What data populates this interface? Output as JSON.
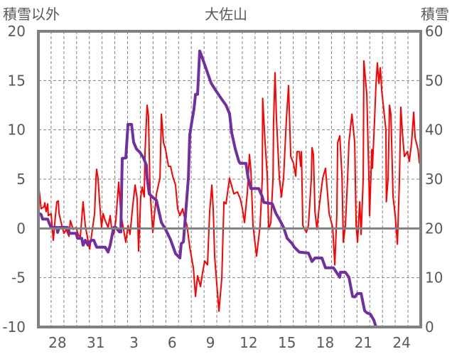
{
  "chart_data": {
    "type": "line",
    "title": "大佐山",
    "ylabel_left": "積雪以外",
    "ylabel_right": "積雪",
    "xlabel": "",
    "ylim_left": [
      -10,
      20
    ],
    "ylim_right": [
      0,
      60
    ],
    "left_ticks": [
      "20",
      "15",
      "10",
      "5",
      "0",
      "-5",
      "-10"
    ],
    "right_ticks": [
      "60",
      "50",
      "40",
      "30",
      "20",
      "10",
      "0"
    ],
    "x_days": 30,
    "x_tick_labels": [
      {
        "day_index": 1,
        "label": "28"
      },
      {
        "day_index": 4,
        "label": "31"
      },
      {
        "day_index": 7,
        "label": "3"
      },
      {
        "day_index": 10,
        "label": "6"
      },
      {
        "day_index": 13,
        "label": "9"
      },
      {
        "day_index": 16,
        "label": "12"
      },
      {
        "day_index": 19,
        "label": "15"
      },
      {
        "day_index": 22,
        "label": "18"
      },
      {
        "day_index": 25,
        "label": "21"
      },
      {
        "day_index": 28,
        "label": "24"
      }
    ],
    "grid": true,
    "series": [
      {
        "name": "積雪以外",
        "axis": "left",
        "color": "#ff0000",
        "points": [
          [
            0,
            4.2
          ],
          [
            0.06,
            3.9
          ],
          [
            0.22,
            2.0
          ],
          [
            0.45,
            2.2
          ],
          [
            0.5,
            2.6
          ],
          [
            0.61,
            1.7
          ],
          [
            0.73,
            2.5
          ],
          [
            0.78,
            1.3
          ],
          [
            1.0,
            1.5
          ],
          [
            1.17,
            -1.2
          ],
          [
            1.34,
            1.3
          ],
          [
            1.45,
            2.7
          ],
          [
            1.56,
            2.8
          ],
          [
            1.62,
            1.5
          ],
          [
            1.84,
            0.3
          ],
          [
            2.01,
            -0.5
          ],
          [
            2.18,
            -0.1
          ],
          [
            2.4,
            -0.8
          ],
          [
            2.51,
            0.8
          ],
          [
            2.73,
            -0.1
          ],
          [
            2.96,
            0.1
          ],
          [
            3.12,
            -0.6
          ],
          [
            3.29,
            -0.9
          ],
          [
            3.51,
            2.7
          ],
          [
            3.68,
            0.3
          ],
          [
            3.85,
            -0.9
          ],
          [
            4.02,
            -2.1
          ],
          [
            4.24,
            -0.1
          ],
          [
            4.41,
            1.5
          ],
          [
            4.52,
            5.1
          ],
          [
            4.57,
            6.0
          ],
          [
            4.68,
            5.1
          ],
          [
            4.8,
            2.7
          ],
          [
            4.96,
            0.1
          ],
          [
            5.08,
            1.5
          ],
          [
            5.24,
            0.8
          ],
          [
            5.47,
            0.1
          ],
          [
            5.63,
            1.3
          ],
          [
            5.74,
            0.1
          ],
          [
            5.91,
            -0.6
          ],
          [
            6.08,
            0.8
          ],
          [
            6.3,
            4.7
          ],
          [
            6.47,
            1.5
          ],
          [
            6.86,
            -1.4
          ],
          [
            7.03,
            0.3
          ],
          [
            7.19,
            -0.6
          ],
          [
            7.42,
            2.5
          ],
          [
            7.59,
            4.4
          ],
          [
            7.75,
            3.0
          ],
          [
            7.86,
            -2.3
          ],
          [
            8.03,
            3.2
          ],
          [
            8.14,
            4.2
          ],
          [
            8.31,
            3.2
          ],
          [
            8.37,
            7.8
          ],
          [
            8.53,
            12.5
          ],
          [
            8.64,
            11.4
          ],
          [
            8.76,
            3.9
          ],
          [
            8.98,
            -0.4
          ],
          [
            9.26,
            3.5
          ],
          [
            9.54,
            5.1
          ],
          [
            9.65,
            11.6
          ],
          [
            9.82,
            8.7
          ],
          [
            9.98,
            8.0
          ],
          [
            10.21,
            6.3
          ],
          [
            10.37,
            6.3
          ],
          [
            10.54,
            5.3
          ],
          [
            10.76,
            4.4
          ],
          [
            10.93,
            2.0
          ],
          [
            11.1,
            1.3
          ],
          [
            11.32,
            2.0
          ],
          [
            11.43,
            1.3
          ],
          [
            11.66,
            0.3
          ],
          [
            11.88,
            -1.9
          ],
          [
            12.16,
            -4.0
          ],
          [
            12.33,
            -6.9
          ],
          [
            12.49,
            -4.8
          ],
          [
            12.72,
            -5.9
          ],
          [
            12.88,
            -4.5
          ],
          [
            13.05,
            -3.3
          ],
          [
            13.27,
            -3.7
          ],
          [
            13.44,
            1.7
          ],
          [
            13.61,
            4.4
          ],
          [
            13.72,
            2.0
          ],
          [
            13.83,
            -2.8
          ],
          [
            14.0,
            -5.7
          ],
          [
            14.17,
            -8.4
          ],
          [
            14.39,
            -5.0
          ],
          [
            14.56,
            2.7
          ],
          [
            14.72,
            2.5
          ],
          [
            15.0,
            5.1
          ],
          [
            15.34,
            3.5
          ],
          [
            15.62,
            3.7
          ],
          [
            15.84,
            3.0
          ],
          [
            16.01,
            2.0
          ],
          [
            16.17,
            0.6
          ],
          [
            16.4,
            3.7
          ],
          [
            16.56,
            7.5
          ],
          [
            16.68,
            5.8
          ],
          [
            16.84,
            0.3
          ],
          [
            17.12,
            -2.8
          ],
          [
            17.4,
            0.3
          ],
          [
            17.57,
            5.1
          ],
          [
            17.6,
            13.2
          ],
          [
            17.79,
            8.7
          ],
          [
            17.96,
            5.3
          ],
          [
            18.07,
            -0.1
          ],
          [
            18.24,
            0.6
          ],
          [
            18.41,
            5.1
          ],
          [
            18.45,
            10.7
          ],
          [
            18.57,
            15.8
          ],
          [
            18.68,
            11.1
          ],
          [
            18.91,
            5.1
          ],
          [
            19.07,
            3.2
          ],
          [
            19.24,
            5.1
          ],
          [
            19.46,
            11.1
          ],
          [
            19.63,
            14.5
          ],
          [
            19.8,
            7.3
          ],
          [
            20.02,
            6.6
          ],
          [
            20.19,
            5.3
          ],
          [
            20.3,
            7.8
          ],
          [
            20.47,
            7.8
          ],
          [
            20.58,
            6.3
          ],
          [
            20.64,
            7.8
          ],
          [
            20.75,
            0.3
          ],
          [
            21.03,
            -0.4
          ],
          [
            21.19,
            0.3
          ],
          [
            21.42,
            5.1
          ],
          [
            21.47,
            8.2
          ],
          [
            21.58,
            7.5
          ],
          [
            21.7,
            1.7
          ],
          [
            21.86,
            -0.1
          ],
          [
            22.03,
            2.2
          ],
          [
            22.31,
            5.1
          ],
          [
            22.53,
            6.1
          ],
          [
            22.81,
            1.5
          ],
          [
            23.09,
            0.1
          ],
          [
            23.26,
            -3.7
          ],
          [
            23.42,
            1.5
          ],
          [
            23.48,
            8.7
          ],
          [
            23.65,
            9.4
          ],
          [
            23.82,
            5.3
          ],
          [
            23.93,
            -1.4
          ],
          [
            24.09,
            0.3
          ],
          [
            24.26,
            5.1
          ],
          [
            24.37,
            8.7
          ],
          [
            24.6,
            11.6
          ],
          [
            24.82,
            8.7
          ],
          [
            24.93,
            0.3
          ],
          [
            25.04,
            -1.4
          ],
          [
            25.21,
            2.7
          ],
          [
            25.32,
            -0.6
          ],
          [
            25.49,
            5.1
          ],
          [
            25.54,
            17.0
          ],
          [
            25.77,
            13.6
          ],
          [
            25.93,
            5.3
          ],
          [
            25.99,
            1.3
          ],
          [
            26.16,
            8.0
          ],
          [
            26.21,
            6.1
          ],
          [
            26.38,
            11.1
          ],
          [
            26.49,
            14.7
          ],
          [
            26.6,
            16.8
          ],
          [
            26.72,
            14.7
          ],
          [
            26.83,
            16.3
          ],
          [
            26.94,
            14.0
          ],
          [
            27.27,
            10.0
          ],
          [
            27.3,
            2.7
          ],
          [
            27.44,
            5.1
          ],
          [
            27.55,
            12.5
          ],
          [
            27.66,
            11.6
          ],
          [
            27.83,
            3.2
          ],
          [
            28.0,
            1.3
          ],
          [
            28.17,
            -1.6
          ],
          [
            28.33,
            5.1
          ],
          [
            28.44,
            12.3
          ],
          [
            28.56,
            9.7
          ],
          [
            28.72,
            7.3
          ],
          [
            28.95,
            7.8
          ],
          [
            29.11,
            6.8
          ],
          [
            29.28,
            8.7
          ],
          [
            29.45,
            11.8
          ],
          [
            29.56,
            9.2
          ],
          [
            29.79,
            8.0
          ],
          [
            29.9,
            6.6
          ]
        ]
      },
      {
        "name": "積雪",
        "axis": "right",
        "color": "#7030a0",
        "points": [
          [
            0,
            23.1
          ],
          [
            0.22,
            22.8
          ],
          [
            0.33,
            21.9
          ],
          [
            0.73,
            21.9
          ],
          [
            0.84,
            21.1
          ],
          [
            1.0,
            20.2
          ],
          [
            1.45,
            20.2
          ],
          [
            1.51,
            19.2
          ],
          [
            1.62,
            20.2
          ],
          [
            2.29,
            20.2
          ],
          [
            2.45,
            19.0
          ],
          [
            2.96,
            19.0
          ],
          [
            3.07,
            18.0
          ],
          [
            3.4,
            18.0
          ],
          [
            3.51,
            16.6
          ],
          [
            3.68,
            17.6
          ],
          [
            3.9,
            16.6
          ],
          [
            4.13,
            17.6
          ],
          [
            4.35,
            17.6
          ],
          [
            4.57,
            16.2
          ],
          [
            5.24,
            16.2
          ],
          [
            5.47,
            15.2
          ],
          [
            5.63,
            16.6
          ],
          [
            5.8,
            18.8
          ],
          [
            5.91,
            20.2
          ],
          [
            6.08,
            20.2
          ],
          [
            6.36,
            19.3
          ],
          [
            6.47,
            19.3
          ],
          [
            6.58,
            34.2
          ],
          [
            6.86,
            34.3
          ],
          [
            7.03,
            41.1
          ],
          [
            7.31,
            41.1
          ],
          [
            7.47,
            37.5
          ],
          [
            7.7,
            36.1
          ],
          [
            7.98,
            35.4
          ],
          [
            8.25,
            34.3
          ],
          [
            8.48,
            32.8
          ],
          [
            8.53,
            30.3
          ],
          [
            8.7,
            27.0
          ],
          [
            8.98,
            26.3
          ],
          [
            9.26,
            25.7
          ],
          [
            9.65,
            21.2
          ],
          [
            9.98,
            19.8
          ],
          [
            10.37,
            17.7
          ],
          [
            10.76,
            14.9
          ],
          [
            11.1,
            14.0
          ],
          [
            11.21,
            16.9
          ],
          [
            11.38,
            17.3
          ],
          [
            11.6,
            24.5
          ],
          [
            11.77,
            30.3
          ],
          [
            11.88,
            39.0
          ],
          [
            12.05,
            41.8
          ],
          [
            12.21,
            44.3
          ],
          [
            12.33,
            47.2
          ],
          [
            12.49,
            47.2
          ],
          [
            12.66,
            56.0
          ],
          [
            12.77,
            55.3
          ],
          [
            13.16,
            52.4
          ],
          [
            13.55,
            49.5
          ],
          [
            13.89,
            48.1
          ],
          [
            14.28,
            46.6
          ],
          [
            14.72,
            45.0
          ],
          [
            15.0,
            43.3
          ],
          [
            15.17,
            39.4
          ],
          [
            15.45,
            36.1
          ],
          [
            15.73,
            33.6
          ],
          [
            15.84,
            33.2
          ],
          [
            16.29,
            33.2
          ],
          [
            16.45,
            30.3
          ],
          [
            16.68,
            28.1
          ],
          [
            17.29,
            28.1
          ],
          [
            17.57,
            26.4
          ],
          [
            17.68,
            25.3
          ],
          [
            18.35,
            25.0
          ],
          [
            18.63,
            23.1
          ],
          [
            18.96,
            21.6
          ],
          [
            19.24,
            20.2
          ],
          [
            19.52,
            18.0
          ],
          [
            19.91,
            16.9
          ],
          [
            20.08,
            16.2
          ],
          [
            20.47,
            15.2
          ],
          [
            21.19,
            15.0
          ],
          [
            21.47,
            13.3
          ],
          [
            21.7,
            14.0
          ],
          [
            22.25,
            14.0
          ],
          [
            22.53,
            12.0
          ],
          [
            23.15,
            12.0
          ],
          [
            23.65,
            10.1
          ],
          [
            23.7,
            11.1
          ],
          [
            24.09,
            11.1
          ],
          [
            24.37,
            10.1
          ],
          [
            24.65,
            6.2
          ],
          [
            24.82,
            6.1
          ],
          [
            25.04,
            6.8
          ],
          [
            25.32,
            6.8
          ],
          [
            25.6,
            3.3
          ],
          [
            25.77,
            2.9
          ],
          [
            26.05,
            2.6
          ],
          [
            26.32,
            1.4
          ],
          [
            26.49,
            0
          ],
          [
            29.95,
            0
          ]
        ]
      }
    ]
  }
}
